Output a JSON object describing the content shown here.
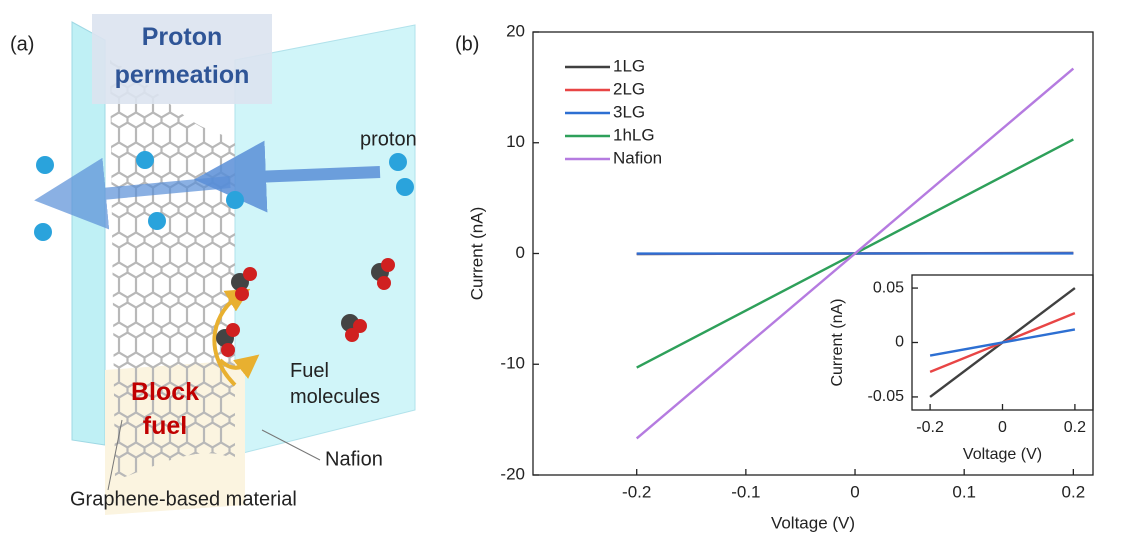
{
  "panel_a": {
    "label": "(a)",
    "title": "Proton permeation",
    "proton": "proton",
    "block": "Block fuel",
    "fuel": "Fuel molecules",
    "nafion": "Nafion",
    "material": "Graphene-based material"
  },
  "panel_b": {
    "label": "(b)"
  },
  "chart_data": [
    {
      "type": "line",
      "x_label": "Voltage (V)",
      "y_label": "Current (nA)",
      "xlim": [
        -0.295,
        0.218
      ],
      "ylim": [
        -20,
        20
      ],
      "xticks": [
        -0.2,
        -0.1,
        0,
        0.1,
        0.2
      ],
      "yticks": [
        -20,
        -10,
        0,
        10,
        20
      ],
      "legend": "upper left",
      "x": [
        -0.2,
        0.2
      ],
      "series": [
        {
          "name": "1LG",
          "color": "#404040",
          "values": [
            -0.05,
            0.05
          ]
        },
        {
          "name": "2LG",
          "color": "#e84545",
          "values": [
            -0.027,
            0.027
          ]
        },
        {
          "name": "3LG",
          "color": "#2d6fd2",
          "values": [
            -0.012,
            0.012
          ]
        },
        {
          "name": "1hLG",
          "color": "#2ea05a",
          "values": [
            -10.3,
            10.3
          ]
        },
        {
          "name": "Nafion",
          "color": "#b57be0",
          "values": [
            -16.7,
            16.7
          ]
        }
      ]
    },
    {
      "type": "line",
      "x_label": "Voltage (V)",
      "y_label": "Current (nA)",
      "xlim": [
        -0.25,
        0.25
      ],
      "ylim": [
        -0.062,
        0.062
      ],
      "xticks": [
        -0.2,
        0,
        0.2
      ],
      "yticks": [
        -0.05,
        0,
        0.05
      ],
      "x": [
        -0.2,
        0.2
      ],
      "series": [
        {
          "color": "#404040",
          "values": [
            -0.05,
            0.05
          ]
        },
        {
          "color": "#e84545",
          "values": [
            -0.027,
            0.027
          ]
        },
        {
          "color": "#2d6fd2",
          "values": [
            -0.012,
            0.012
          ]
        }
      ]
    }
  ]
}
